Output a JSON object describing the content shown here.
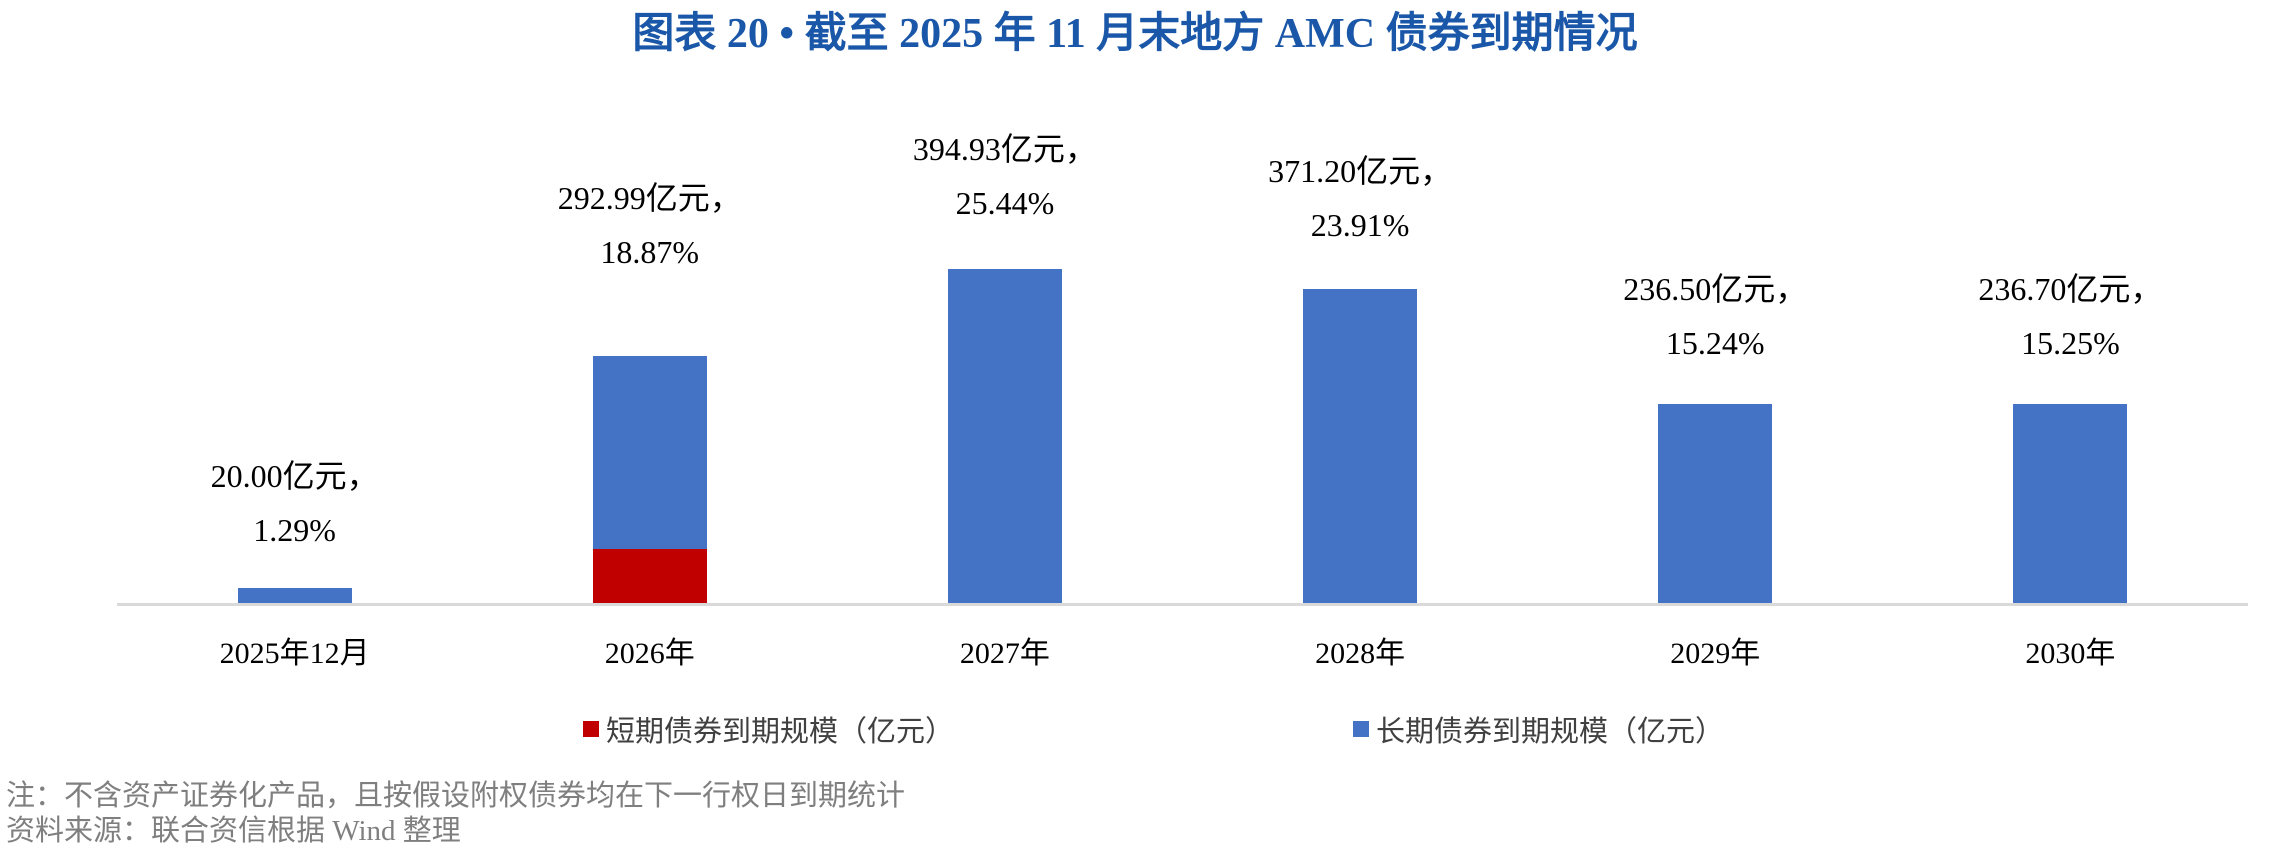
{
  "title": "图表 20 • 截至 2025 年 11 月末地方 AMC 债券到期情况",
  "chart_data": {
    "type": "bar",
    "stacked": true,
    "grid": false,
    "legend_position": "bottom",
    "xlabel": "",
    "ylabel": "",
    "ylim": [
      0,
      420
    ],
    "categories": [
      "2025年12月",
      "2026年",
      "2027年",
      "2028年",
      "2029年",
      "2030年"
    ],
    "series": [
      {
        "name": "短期债券到期规模（亿元）",
        "color": "#C00000",
        "values": [
          0,
          66,
          0,
          0,
          0,
          0
        ]
      },
      {
        "name": "长期债券到期规模（亿元）",
        "color": "#4472C4",
        "values": [
          20.0,
          226.99,
          394.93,
          371.2,
          236.5,
          236.7
        ]
      }
    ],
    "totals": [
      20.0,
      292.99,
      394.93,
      371.2,
      236.5,
      236.7
    ],
    "total_share_pct": [
      1.29,
      18.87,
      25.44,
      23.91,
      15.24,
      15.25
    ],
    "bar_labels": [
      [
        "20.00亿元，",
        "1.29%"
      ],
      [
        "292.99亿元，",
        "18.87%"
      ],
      [
        "394.93亿元，",
        "25.44%"
      ],
      [
        "371.20亿元，",
        "23.91%"
      ],
      [
        "236.50亿元，",
        "15.24%"
      ],
      [
        "236.70亿元，",
        "15.25%"
      ]
    ],
    "colors": {
      "short_term": "#C00000",
      "long_term": "#4472C4",
      "axis_line": "#D9D9D9",
      "title": "#1A57A8"
    }
  },
  "notes": [
    "注：不含资产证券化产品，且按假设附权债券均在下一行权日到期统计",
    "资料来源：联合资信根据 Wind 整理"
  ]
}
